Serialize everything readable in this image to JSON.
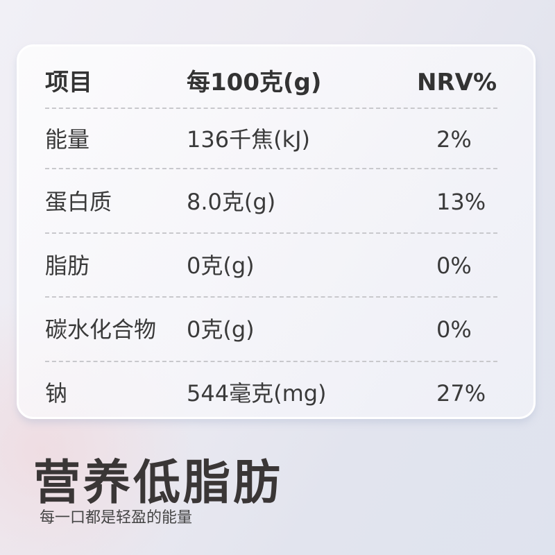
{
  "table": {
    "headers": [
      "项目",
      "每100克(g)",
      "NRV%"
    ],
    "rows": [
      [
        "能量",
        "136千焦(kJ)",
        "2%"
      ],
      [
        "蛋白质",
        "8.0克(g)",
        "13%"
      ],
      [
        "脂肪",
        "0克(g)",
        "0%"
      ],
      [
        "碳水化合物",
        "0克(g)",
        "0%"
      ],
      [
        "钠",
        "544毫克(mg)",
        "27%"
      ]
    ]
  },
  "headline": "营养低脂肪",
  "subtitle": "每一口都是轻盈的能量"
}
